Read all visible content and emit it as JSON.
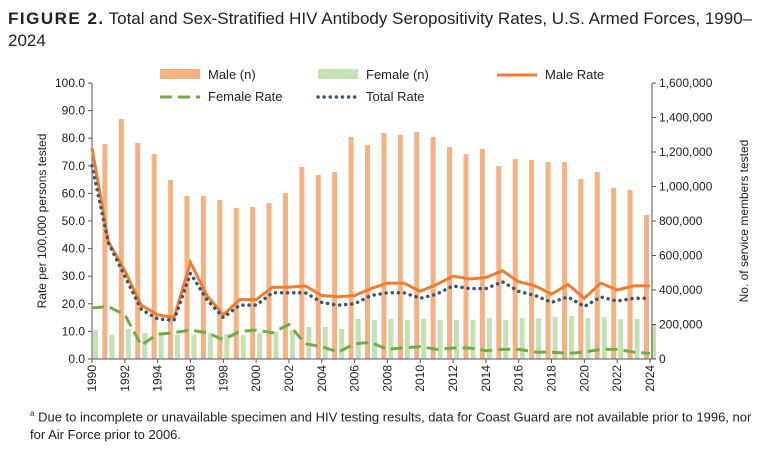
{
  "title": {
    "label": "FIGURE 2.",
    "text": "Total and Sex-Stratified HIV Antibody Seropositivity Rates, U.S. Armed Forces, 1990–2024"
  },
  "footnote": {
    "marker": "a",
    "text": "Due to incomplete or unavailable specimen and HIV testing results, data for Coast Guard are not available prior to 1996, nor for Air Force prior to 2006."
  },
  "chart_data": {
    "type": "bar+line",
    "ylabel": "Rate per 100,000 persons tested",
    "y2label": "No. of service members tested",
    "ylim": [
      0,
      100
    ],
    "y2lim": [
      0,
      1600000
    ],
    "yticks": [
      "0.0",
      "10.0",
      "20.0",
      "30.0",
      "40.0",
      "50.0",
      "60.0",
      "70.0",
      "80.0",
      "90.0",
      "100.0"
    ],
    "y2ticks": [
      "0",
      "200,000",
      "400,000",
      "600,000",
      "800,000",
      "1,000,000",
      "1,200,000",
      "1,400,000",
      "1,600,000"
    ],
    "grid": false,
    "legend_position": "top",
    "categories": [
      "1990",
      "1991",
      "1992",
      "1993",
      "1994",
      "1995",
      "1996",
      "1997",
      "1998",
      "1999",
      "2000",
      "2001",
      "2002",
      "2003",
      "2004",
      "2005",
      "2006",
      "2007",
      "2008",
      "2009",
      "2010",
      "2011",
      "2012",
      "2013",
      "2014",
      "2015",
      "2016",
      "2017",
      "2018",
      "2019",
      "2020",
      "2021",
      "2022",
      "2023",
      "2024"
    ],
    "bars": [
      {
        "name": "Male (n)",
        "color": "#f4b183",
        "axis": "right",
        "values": [
          null,
          1246000,
          1391000,
          1252000,
          1188000,
          1038000,
          945000,
          945000,
          922000,
          875000,
          881000,
          904000,
          962000,
          1113000,
          1067000,
          1084000,
          1287000,
          1241000,
          1310000,
          1299000,
          1316000,
          1287000,
          1229000,
          1188000,
          1217000,
          1119000,
          1159000,
          1154000,
          1142000,
          1142000,
          1043000,
          1084000,
          991000,
          980000,
          835000
        ]
      },
      {
        "name": "Female (n)",
        "color": "#c5e0b4",
        "axis": "right",
        "values": [
          168000,
          139000,
          174000,
          151000,
          151000,
          139000,
          139000,
          151000,
          145000,
          139000,
          151000,
          157000,
          168000,
          186000,
          186000,
          174000,
          232000,
          226000,
          232000,
          226000,
          232000,
          226000,
          226000,
          226000,
          238000,
          226000,
          238000,
          238000,
          243000,
          249000,
          238000,
          243000,
          232000,
          232000,
          203000
        ]
      }
    ],
    "series": [
      {
        "name": "Male Rate",
        "color": "#ed7d31",
        "style": "solid",
        "values": [
          76.5,
          42.5,
          32,
          19.5,
          16,
          15,
          35,
          23,
          16,
          21.5,
          21.5,
          26,
          26,
          26.5,
          23,
          22.5,
          23,
          25.5,
          27.5,
          27.5,
          24.5,
          27,
          30,
          29,
          29.5,
          32,
          28,
          26.5,
          23.5,
          27,
          22,
          27.5,
          25,
          26.5,
          26.5
        ]
      },
      {
        "name": "Female Rate",
        "color": "#70ad47",
        "style": "dashed",
        "values": [
          18.5,
          19,
          16,
          5,
          9,
          9.5,
          10.5,
          9.5,
          7,
          10,
          10.5,
          9.5,
          12.5,
          5.5,
          4.5,
          2.5,
          5.5,
          6,
          3.5,
          4,
          4.5,
          3.5,
          4,
          4,
          3,
          3.5,
          3.5,
          2.5,
          2.5,
          2,
          2.5,
          3.5,
          3.5,
          2.5,
          2
        ]
      },
      {
        "name": "Total Rate",
        "color": "#44546a",
        "style": "dotted",
        "values": [
          70,
          42,
          30,
          18,
          14.5,
          14,
          31,
          21.5,
          15,
          19.5,
          19.5,
          24,
          24,
          24,
          20.5,
          19.5,
          20,
          23,
          24,
          24,
          22,
          23.5,
          26.5,
          25.5,
          25.5,
          28,
          24.5,
          23,
          20.5,
          22.5,
          19,
          22.5,
          21,
          22,
          22
        ]
      }
    ]
  }
}
